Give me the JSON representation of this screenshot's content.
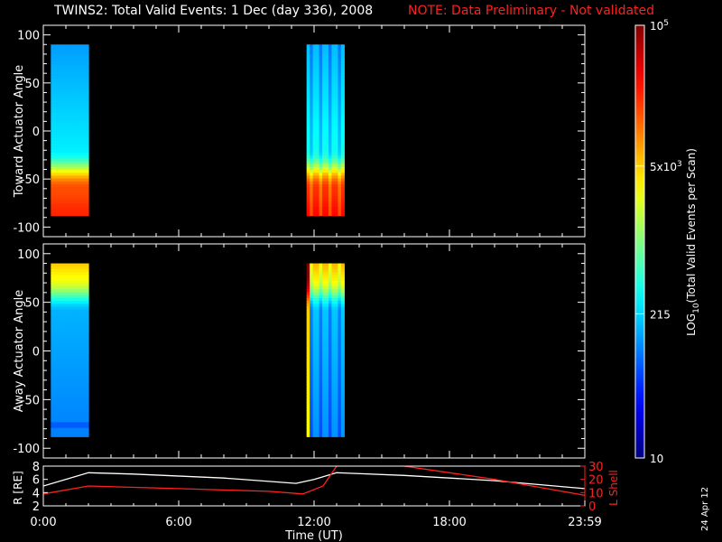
{
  "title": "TWINS2: Total Valid Events:  1 Dec (day 336), 2008",
  "note": "NOTE: Data Preliminary - Not validated",
  "colors": {
    "background": "#000000",
    "axes": "#ffffff",
    "note": "#ff2020",
    "r_line": "#ffffff",
    "l_line": "#ff2020"
  },
  "stamp": "24 Apr 12",
  "chart_data": [
    {
      "type": "heatmap",
      "ylabel": "Toward Actuator Angle",
      "ylim": [
        -110,
        110
      ],
      "yticks": [
        -100,
        -50,
        0,
        50,
        100
      ],
      "xlim": [
        0,
        24
      ],
      "grid": false,
      "data_intervals": [
        {
          "start": "0:20",
          "end": "2:00"
        },
        {
          "start": "11:40",
          "end": "13:20"
        }
      ],
      "angle_range": [
        -88,
        90
      ],
      "trend": "highest counts at -88 to -60 degrees, decreasing toward +90"
    },
    {
      "type": "heatmap",
      "ylabel": "Away Actuator Angle",
      "ylim": [
        -110,
        110
      ],
      "yticks": [
        -100,
        -50,
        0,
        50,
        100
      ],
      "xlim": [
        0,
        24
      ],
      "grid": false,
      "data_intervals": [
        {
          "start": "0:20",
          "end": "2:00"
        },
        {
          "start": "11:40",
          "end": "13:20"
        }
      ],
      "angle_range": [
        -88,
        90
      ],
      "trend": "highest counts at +60 to +90 degrees, decreasing toward -88"
    },
    {
      "type": "line",
      "xlabel": "Time (UT)",
      "xticks": [
        "0:00",
        "6:00",
        "12:00",
        "18:00",
        "23:59"
      ],
      "xlim": [
        0,
        24
      ],
      "ylabel_left": "R [RE]",
      "ylabel_right": "L Shell",
      "yticks_left": [
        2,
        4,
        6,
        8
      ],
      "ylim_left": [
        2,
        8
      ],
      "yticks_right": [
        0,
        10,
        20,
        30
      ],
      "ylim_right": [
        0,
        30
      ],
      "series": [
        {
          "name": "R [RE]",
          "axis": "left",
          "x": [
            0,
            2,
            4,
            8,
            11.2,
            12,
            13,
            16,
            20,
            24
          ],
          "y": [
            5.0,
            7.0,
            6.8,
            6.2,
            5.4,
            6.0,
            7.0,
            6.6,
            5.8,
            4.6
          ]
        },
        {
          "name": "L Shell",
          "axis": "right",
          "x": [
            0,
            2,
            6,
            10,
            11.5,
            12.4,
            13,
            14,
            16,
            18,
            20,
            22,
            24
          ],
          "y": [
            9,
            15,
            13,
            11,
            9,
            15,
            30,
            31,
            30,
            25,
            20,
            14,
            8
          ]
        }
      ]
    }
  ],
  "colorbar": {
    "label": "LOG10(Total Valid Events per Scan)",
    "label_main": "LOG",
    "label_sub": "10",
    "label_tail": "(Total Valid  Events per Scan)",
    "ticks": [
      {
        "value": 10,
        "text": "10"
      },
      {
        "value": 215,
        "text": "215"
      },
      {
        "value": 5000,
        "text": "5x10",
        "sup": "3"
      },
      {
        "value": 100000,
        "text": "10",
        "sup": "5"
      }
    ],
    "range": [
      10,
      100000
    ],
    "scale": "log"
  }
}
